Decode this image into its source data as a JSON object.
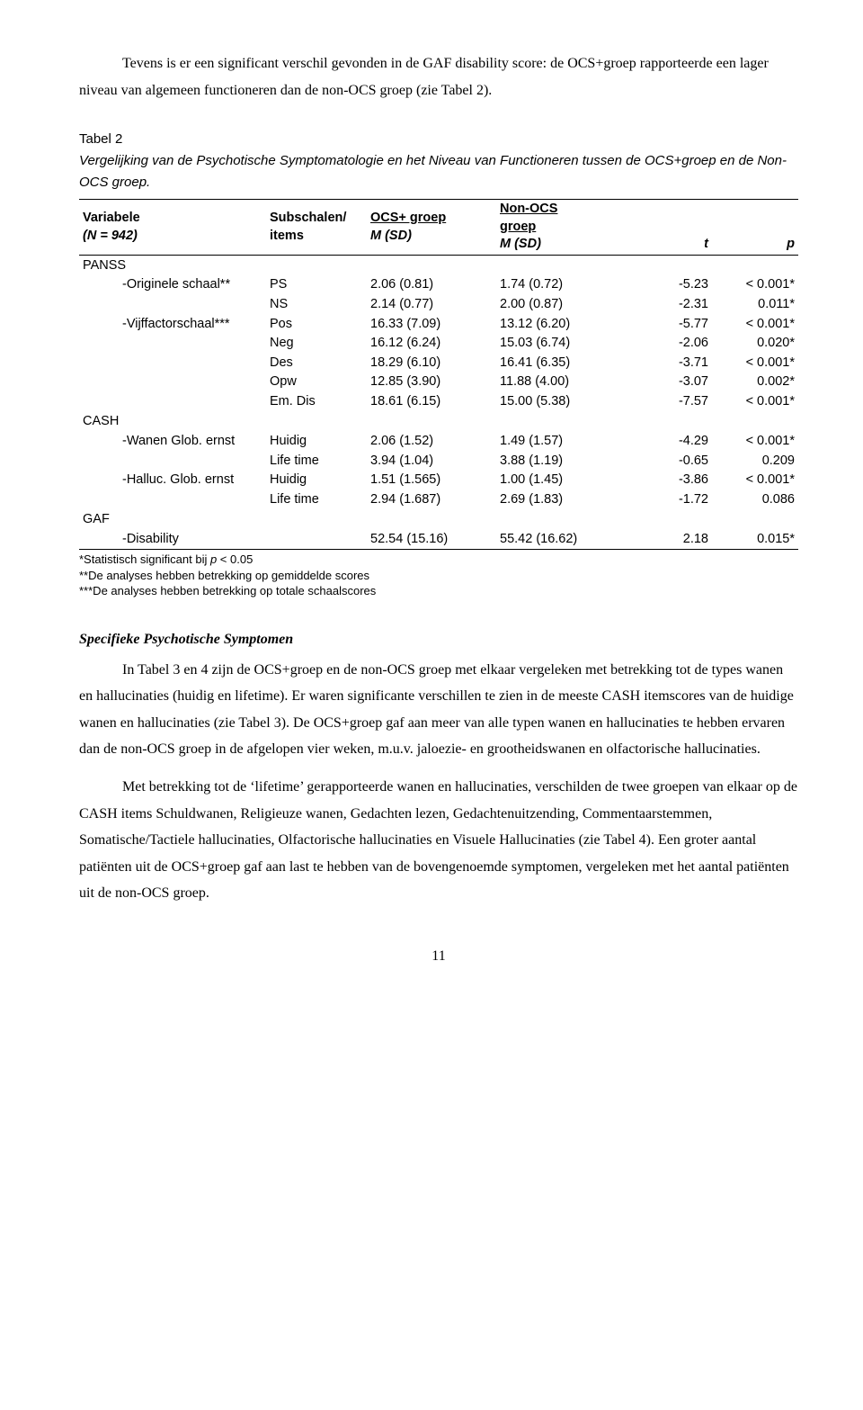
{
  "intro": {
    "p1": "Tevens is er een significant verschil gevonden in de GAF disability score: de OCS+groep rapporteerde een lager niveau van algemeen functioneren dan de non-OCS groep (zie Tabel 2)."
  },
  "table2": {
    "label": "Tabel 2",
    "desc": "Vergelijking van de Psychotische Symptomatologie en het Niveau van Functioneren tussen de OCS+groep en de Non-OCS groep.",
    "headers": {
      "var": "Variabele",
      "n": "(N = 942)",
      "sub": "Subschalen/\nitems",
      "ocs": "OCS+ groep",
      "non": "Non-OCS\ngroep",
      "msd": "M (SD)",
      "t": "t",
      "p": "p"
    },
    "sections": {
      "panss": "PANSS",
      "cash": "CASH",
      "gaf": "GAF"
    },
    "rows": [
      {
        "var": "-Originele schaal**",
        "sub": "PS",
        "ocs": "2.06 (0.81)",
        "non": "1.74 (0.72)",
        "t": "-5.23",
        "p": "< 0.001*"
      },
      {
        "var": "",
        "sub": "NS",
        "ocs": "2.14 (0.77)",
        "non": "2.00 (0.87)",
        "t": "-2.31",
        "p": "0.011*"
      },
      {
        "var": "-Vijffactorschaal***",
        "sub": "Pos",
        "ocs": "16.33 (7.09)",
        "non": "13.12 (6.20)",
        "t": "-5.77",
        "p": "< 0.001*"
      },
      {
        "var": "",
        "sub": "Neg",
        "ocs": "16.12 (6.24)",
        "non": "15.03 (6.74)",
        "t": "-2.06",
        "p": "0.020*"
      },
      {
        "var": "",
        "sub": "Des",
        "ocs": "18.29 (6.10)",
        "non": "16.41 (6.35)",
        "t": "-3.71",
        "p": "< 0.001*"
      },
      {
        "var": "",
        "sub": "Opw",
        "ocs": "12.85 (3.90)",
        "non": "11.88 (4.00)",
        "t": "-3.07",
        "p": "0.002*"
      },
      {
        "var": "",
        "sub": "Em. Dis",
        "ocs": "18.61 (6.15)",
        "non": "15.00 (5.38)",
        "t": "-7.57",
        "p": "< 0.001*"
      }
    ],
    "cash_rows": [
      {
        "var": "-Wanen Glob. ernst",
        "sub": "Huidig",
        "ocs": "2.06 (1.52)",
        "non": "1.49 (1.57)",
        "t": "-4.29",
        "p": "< 0.001*"
      },
      {
        "var": "",
        "sub": "Life time",
        "ocs": "3.94 (1.04)",
        "non": "3.88 (1.19)",
        "t": "-0.65",
        "p": "0.209"
      },
      {
        "var": "-Halluc. Glob. ernst",
        "sub": "Huidig",
        "ocs": "1.51 (1.565)",
        "non": "1.00 (1.45)",
        "t": "-3.86",
        "p": "< 0.001*"
      },
      {
        "var": "",
        "sub": "Life time",
        "ocs": "2.94 (1.687)",
        "non": "2.69 (1.83)",
        "t": "-1.72",
        "p": "0.086"
      }
    ],
    "gaf_row": {
      "var": "-Disability",
      "sub": "",
      "ocs": "52.54 (15.16)",
      "non": "55.42 (16.62)",
      "t": "2.18",
      "p": "0.015*"
    },
    "footnotes": {
      "f1": "*Statistisch significant bij p < 0.05",
      "f2": "**De analyses hebben betrekking op gemiddelde scores",
      "f3": "***De analyses hebben betrekking op totale schaalscores"
    }
  },
  "subhead": "Specifieke Psychotische Symptomen",
  "body": {
    "p2": "In Tabel 3 en 4 zijn de OCS+groep en de non-OCS groep met elkaar vergeleken met betrekking tot de types wanen en hallucinaties (huidig en lifetime). Er waren significante verschillen te zien in de meeste CASH itemscores van de huidige wanen en hallucinaties (zie Tabel 3). De OCS+groep gaf aan meer van alle typen wanen en hallucinaties te hebben ervaren dan de non-OCS groep in de afgelopen vier weken, m.u.v. jaloezie- en grootheidswanen en olfactorische hallucinaties.",
    "p3": "Met betrekking tot de ‘lifetime’ gerapporteerde wanen en hallucinaties, verschilden de twee groepen van elkaar op de CASH items Schuldwanen, Religieuze wanen, Gedachten lezen, Gedachtenuitzending, Commentaarstemmen, Somatische/Tactiele hallucinaties, Olfactorische hallucinaties en Visuele Hallucinaties (zie Tabel 4). Een groter aantal patiënten uit de OCS+groep gaf aan last te hebben van de bovengenoemde symptomen, vergeleken met het aantal patiënten uit de non-OCS groep."
  },
  "pagenum": "11"
}
